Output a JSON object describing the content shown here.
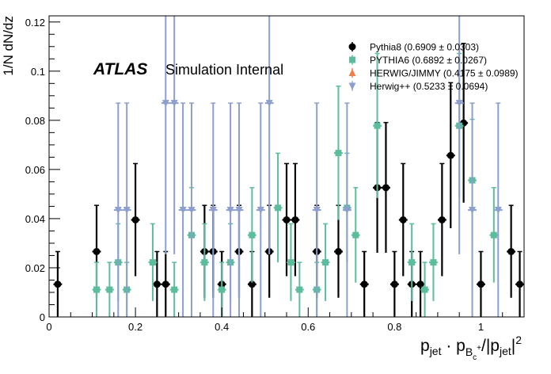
{
  "annotation": {
    "experiment": "ATLAS",
    "label": "Simulation Internal"
  },
  "chart_data": {
    "type": "scatter",
    "title": "",
    "xlabel": "p_jet · p_Bc+ / |p_jet|²",
    "ylabel": "1/N dN/dz",
    "xlim": [
      0,
      1.1
    ],
    "ylim": [
      0,
      0.1225
    ],
    "bin_width": 0.02,
    "x_ticks": [
      0,
      0.2,
      0.4,
      0.6,
      0.8,
      1
    ],
    "y_ticks": [
      0,
      0.02,
      0.04,
      0.06,
      0.08,
      0.1,
      0.12
    ],
    "x_tick_labels": [
      "0",
      "0.2",
      "0.4",
      "0.6",
      "0.8",
      "1"
    ],
    "y_tick_labels": [
      "0",
      "0.02",
      "0.04",
      "0.06",
      "0.08",
      "0.1",
      "0.12"
    ],
    "legend_position": "top-right",
    "series": [
      {
        "name": "Pythia8 (0.6909 ± 0.0303)",
        "color": "#000000",
        "marker": "circle",
        "points": [
          {
            "x": 0.02,
            "y": 0.0133,
            "err": 0.0133
          },
          {
            "x": 0.11,
            "y": 0.0266,
            "err": 0.0188
          },
          {
            "x": 0.2,
            "y": 0.0395,
            "err": 0.0229
          },
          {
            "x": 0.25,
            "y": 0.0133,
            "err": 0.0133
          },
          {
            "x": 0.27,
            "y": 0.0133,
            "err": 0.0133
          },
          {
            "x": 0.36,
            "y": 0.0266,
            "err": 0.0188
          },
          {
            "x": 0.38,
            "y": 0.0266,
            "err": 0.0188
          },
          {
            "x": 0.4,
            "y": 0.0133,
            "err": 0.0133
          },
          {
            "x": 0.44,
            "y": 0.0266,
            "err": 0.0188
          },
          {
            "x": 0.47,
            "y": 0.0133,
            "err": 0.0133
          },
          {
            "x": 0.51,
            "y": 0.0266,
            "err": 0.0188
          },
          {
            "x": 0.55,
            "y": 0.0395,
            "err": 0.0229
          },
          {
            "x": 0.57,
            "y": 0.0395,
            "err": 0.0229
          },
          {
            "x": 0.62,
            "y": 0.0266,
            "err": 0.0188
          },
          {
            "x": 0.67,
            "y": 0.0266,
            "err": 0.0188
          },
          {
            "x": 0.73,
            "y": 0.0133,
            "err": 0.0133
          },
          {
            "x": 0.76,
            "y": 0.0526,
            "err": 0.0265
          },
          {
            "x": 0.78,
            "y": 0.0526,
            "err": 0.0265
          },
          {
            "x": 0.8,
            "y": 0.0133,
            "err": 0.0133
          },
          {
            "x": 0.82,
            "y": 0.0395,
            "err": 0.0229
          },
          {
            "x": 0.84,
            "y": 0.0133,
            "err": 0.0133
          },
          {
            "x": 0.86,
            "y": 0.0133,
            "err": 0.0133
          },
          {
            "x": 0.91,
            "y": 0.0395,
            "err": 0.0229
          },
          {
            "x": 0.93,
            "y": 0.0657,
            "err": 0.0296
          },
          {
            "x": 0.96,
            "y": 0.0789,
            "err": 0.0324
          },
          {
            "x": 1.0,
            "y": 0.0133,
            "err": 0.0133
          },
          {
            "x": 1.07,
            "y": 0.0266,
            "err": 0.0188
          },
          {
            "x": 1.09,
            "y": 0.0133,
            "err": 0.0133
          }
        ]
      },
      {
        "name": "PYTHIA6 (0.6892 ± 0.0267)",
        "color": "#5bbd9e",
        "marker": "square",
        "points": [
          {
            "x": 0.11,
            "y": 0.0111,
            "err": 0.0111
          },
          {
            "x": 0.14,
            "y": 0.0111,
            "err": 0.0111
          },
          {
            "x": 0.16,
            "y": 0.0222,
            "err": 0.0157
          },
          {
            "x": 0.18,
            "y": 0.0111,
            "err": 0.0111
          },
          {
            "x": 0.24,
            "y": 0.0222,
            "err": 0.0157
          },
          {
            "x": 0.29,
            "y": 0.0111,
            "err": 0.0111
          },
          {
            "x": 0.33,
            "y": 0.0333,
            "err": 0.0193
          },
          {
            "x": 0.36,
            "y": 0.0222,
            "err": 0.0157
          },
          {
            "x": 0.4,
            "y": 0.0111,
            "err": 0.0111
          },
          {
            "x": 0.42,
            "y": 0.0222,
            "err": 0.0157
          },
          {
            "x": 0.47,
            "y": 0.0333,
            "err": 0.0193
          },
          {
            "x": 0.53,
            "y": 0.0444,
            "err": 0.0222
          },
          {
            "x": 0.56,
            "y": 0.0222,
            "err": 0.0157
          },
          {
            "x": 0.58,
            "y": 0.0111,
            "err": 0.0111
          },
          {
            "x": 0.62,
            "y": 0.0111,
            "err": 0.0111
          },
          {
            "x": 0.64,
            "y": 0.0222,
            "err": 0.0157
          },
          {
            "x": 0.67,
            "y": 0.0667,
            "err": 0.0272
          },
          {
            "x": 0.69,
            "y": 0.0444,
            "err": 0.0222
          },
          {
            "x": 0.71,
            "y": 0.0333,
            "err": 0.0193
          },
          {
            "x": 0.76,
            "y": 0.0778,
            "err": 0.0294
          },
          {
            "x": 0.84,
            "y": 0.0222,
            "err": 0.0157
          },
          {
            "x": 0.87,
            "y": 0.0111,
            "err": 0.0111
          },
          {
            "x": 0.89,
            "y": 0.0222,
            "err": 0.0157
          },
          {
            "x": 0.95,
            "y": 0.0778,
            "err": 0.0294
          },
          {
            "x": 0.98,
            "y": 0.0556,
            "err": 0.0248
          },
          {
            "x": 1.03,
            "y": 0.0333,
            "err": 0.0193
          }
        ]
      },
      {
        "name": "HERWIG/JIMMY (0.4175 ± 0.0989)",
        "color": "#f07f4d",
        "marker": "triangle-up",
        "points": []
      },
      {
        "name": "Herwig++ (0.5233 ± 0.0694)",
        "color": "#8c9fcf",
        "marker": "triangle-down",
        "points": [
          {
            "x": 0.16,
            "y": 0.0435,
            "err": 0.0435
          },
          {
            "x": 0.18,
            "y": 0.0435,
            "err": 0.0435
          },
          {
            "x": 0.27,
            "y": 0.087,
            "err": 0.0615
          },
          {
            "x": 0.29,
            "y": 0.087,
            "err": 0.0615
          },
          {
            "x": 0.31,
            "y": 0.0435,
            "err": 0.0435
          },
          {
            "x": 0.33,
            "y": 0.0435,
            "err": 0.0435
          },
          {
            "x": 0.38,
            "y": 0.0435,
            "err": 0.0435
          },
          {
            "x": 0.42,
            "y": 0.0435,
            "err": 0.0435
          },
          {
            "x": 0.44,
            "y": 0.0435,
            "err": 0.0435
          },
          {
            "x": 0.49,
            "y": 0.0435,
            "err": 0.0435
          },
          {
            "x": 0.51,
            "y": 0.087,
            "err": 0.0615
          },
          {
            "x": 0.62,
            "y": 0.0435,
            "err": 0.0435
          },
          {
            "x": 0.69,
            "y": 0.0435,
            "err": 0.0435
          },
          {
            "x": 0.95,
            "y": 0.087,
            "err": 0.0615
          },
          {
            "x": 0.98,
            "y": 0.0435,
            "err": 0.0435
          },
          {
            "x": 1.04,
            "y": 0.0435,
            "err": 0.0435
          }
        ]
      }
    ]
  }
}
